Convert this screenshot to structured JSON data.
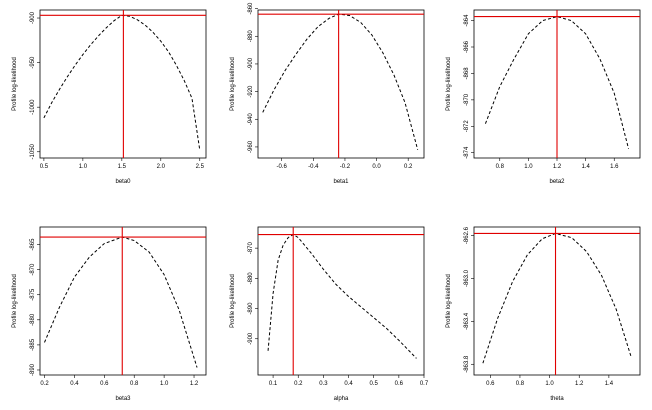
{
  "chart_data": [
    {
      "type": "line",
      "xlabel": "beta0",
      "ylabel": "Profile log-likelihood",
      "xlim": [
        0.45,
        2.58
      ],
      "ylim": [
        -1057,
        -891
      ],
      "xticks": [
        0.5,
        1.0,
        1.5,
        2.0,
        2.5
      ],
      "xtick_labels": [
        "0.5",
        "1.0",
        "1.5",
        "2.0",
        "2.5"
      ],
      "yticks": [
        -900,
        -950,
        -1000,
        -1050
      ],
      "ytick_labels": [
        "-900",
        "-950",
        "-1000",
        "-1050"
      ],
      "vline": 1.52,
      "hline": -897,
      "x": [
        0.5,
        0.6,
        0.7,
        0.8,
        0.9,
        1.0,
        1.1,
        1.2,
        1.3,
        1.4,
        1.5,
        1.6,
        1.7,
        1.8,
        1.9,
        2.0,
        2.1,
        2.2,
        2.3,
        2.4,
        2.5
      ],
      "y": [
        -1012,
        -995,
        -980,
        -966,
        -953,
        -941,
        -930,
        -920,
        -911,
        -903,
        -897,
        -898,
        -902,
        -908,
        -916,
        -926,
        -938,
        -953,
        -970,
        -990,
        -1048
      ]
    },
    {
      "type": "line",
      "xlabel": "beta1",
      "ylabel": "Profile log-likelihood",
      "xlim": [
        -0.75,
        0.3
      ],
      "ylim": [
        -968,
        -861
      ],
      "xticks": [
        -0.6,
        -0.4,
        -0.2,
        0.0,
        0.2
      ],
      "xtick_labels": [
        "-0.6",
        "-0.4",
        "-0.2",
        "0.0",
        "0.2"
      ],
      "yticks": [
        -860,
        -880,
        -900,
        -920,
        -940,
        -960
      ],
      "ytick_labels": [
        "-860",
        "-880",
        "-900",
        "-920",
        "-940",
        "-960"
      ],
      "vline": -0.24,
      "hline": -864,
      "x": [
        -0.72,
        -0.65,
        -0.58,
        -0.51,
        -0.44,
        -0.37,
        -0.3,
        -0.24,
        -0.17,
        -0.1,
        -0.03,
        0.04,
        0.11,
        0.18,
        0.26
      ],
      "y": [
        -935,
        -919,
        -905,
        -893,
        -882,
        -873,
        -867,
        -864,
        -865,
        -870,
        -879,
        -892,
        -908,
        -928,
        -962
      ]
    },
    {
      "type": "line",
      "xlabel": "beta2",
      "ylabel": "Profile log-likelihood",
      "xlim": [
        0.62,
        1.78
      ],
      "ylim": [
        -874.4,
        -863.2
      ],
      "xticks": [
        0.8,
        1.0,
        1.2,
        1.4,
        1.6
      ],
      "xtick_labels": [
        "0.8",
        "1.0",
        "1.2",
        "1.4",
        "1.6"
      ],
      "yticks": [
        -864,
        -866,
        -868,
        -870,
        -872,
        -874
      ],
      "ytick_labels": [
        "-864",
        "-866",
        "-868",
        "-870",
        "-872",
        "-874"
      ],
      "vline": 1.2,
      "hline": -863.7,
      "x": [
        0.7,
        0.8,
        0.9,
        1.0,
        1.1,
        1.2,
        1.3,
        1.4,
        1.5,
        1.6,
        1.7
      ],
      "y": [
        -871.8,
        -869.0,
        -866.9,
        -865.0,
        -864.0,
        -863.7,
        -864.0,
        -865.0,
        -866.9,
        -869.5,
        -873.7
      ]
    },
    {
      "type": "line",
      "xlabel": "beta3",
      "ylabel": "Profile log-likelihood",
      "xlim": [
        0.17,
        1.28
      ],
      "ylim": [
        -891,
        -861.5
      ],
      "xticks": [
        0.2,
        0.4,
        0.6,
        0.8,
        1.0,
        1.2
      ],
      "xtick_labels": [
        "0.2",
        "0.4",
        "0.6",
        "0.8",
        "1.0",
        "1.2"
      ],
      "yticks": [
        -865,
        -870,
        -875,
        -880,
        -885,
        -890
      ],
      "ytick_labels": [
        "-865",
        "-870",
        "-875",
        "-880",
        "-885",
        "-890"
      ],
      "vline": 0.72,
      "hline": -863.5,
      "x": [
        0.2,
        0.3,
        0.4,
        0.5,
        0.6,
        0.72,
        0.8,
        0.9,
        1.0,
        1.1,
        1.22
      ],
      "y": [
        -884.5,
        -877.5,
        -871.5,
        -867.5,
        -864.8,
        -863.5,
        -864.2,
        -866.5,
        -871.0,
        -878.0,
        -889.5
      ]
    },
    {
      "type": "line",
      "xlabel": "alpha",
      "ylabel": "Profile log-likelihood",
      "xlim": [
        0.04,
        0.7
      ],
      "ylim": [
        -912,
        -863
      ],
      "xticks": [
        0.1,
        0.2,
        0.3,
        0.4,
        0.5,
        0.6,
        0.7
      ],
      "xtick_labels": [
        "0.1",
        "0.2",
        "0.3",
        "0.4",
        "0.5",
        "0.6",
        "0.7"
      ],
      "yticks": [
        -870,
        -880,
        -890,
        -900
      ],
      "ytick_labels": [
        "-870",
        "-880",
        "-890",
        "-900"
      ],
      "vline": 0.18,
      "hline": -865.5,
      "x": [
        0.08,
        0.1,
        0.12,
        0.14,
        0.16,
        0.18,
        0.2,
        0.25,
        0.3,
        0.35,
        0.4,
        0.45,
        0.5,
        0.55,
        0.6,
        0.67
      ],
      "y": [
        -904,
        -885,
        -874,
        -869,
        -866.5,
        -865.5,
        -866.5,
        -871.5,
        -877,
        -882,
        -886,
        -889.5,
        -893,
        -896.5,
        -900.5,
        -906.5
      ]
    },
    {
      "type": "line",
      "xlabel": "theta",
      "ylabel": "Profile log-likelihood",
      "xlim": [
        0.49,
        1.61
      ],
      "ylim": [
        -863.9,
        -862.52
      ],
      "xticks": [
        0.6,
        0.8,
        1.0,
        1.2,
        1.4
      ],
      "xtick_labels": [
        "0.6",
        "0.8",
        "1.0",
        "1.2",
        "1.4"
      ],
      "yticks": [
        -862.6,
        -863.0,
        -863.4,
        -863.8
      ],
      "ytick_labels": [
        "-862.6",
        "-863.0",
        "-863.4",
        "-863.8"
      ],
      "vline": 1.04,
      "hline": -862.58,
      "x": [
        0.55,
        0.65,
        0.75,
        0.85,
        0.95,
        1.04,
        1.15,
        1.25,
        1.35,
        1.45,
        1.55
      ],
      "y": [
        -863.79,
        -863.37,
        -863.03,
        -862.78,
        -862.63,
        -862.58,
        -862.62,
        -862.75,
        -862.97,
        -863.29,
        -863.73
      ]
    }
  ]
}
